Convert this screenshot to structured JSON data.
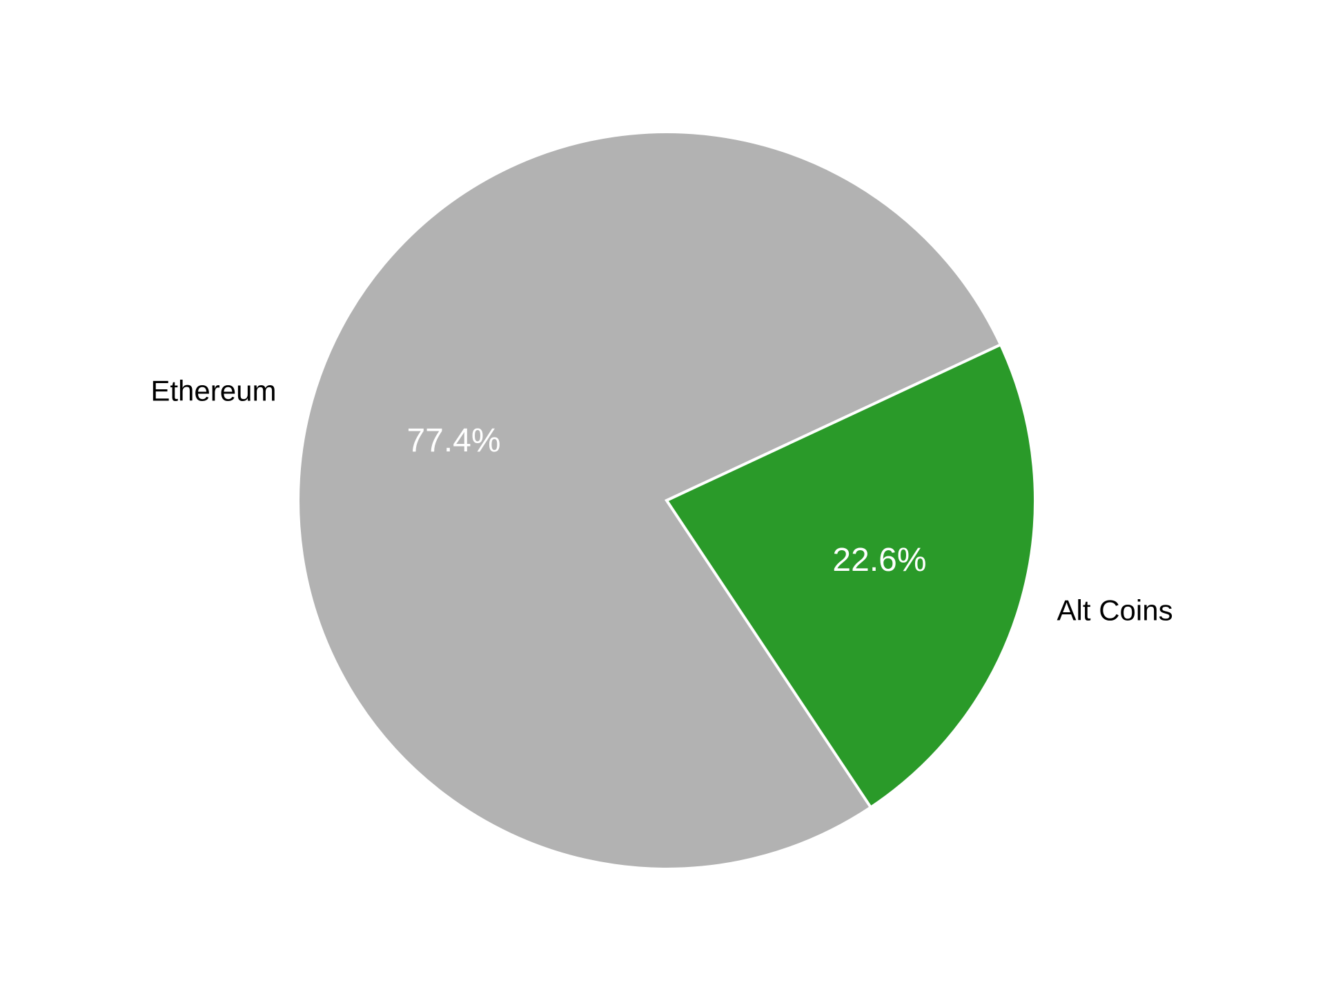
{
  "chart_data": {
    "type": "pie",
    "title": "",
    "categories": [
      "Ethereum",
      "Alt Coins"
    ],
    "values": [
      77.4,
      22.6
    ],
    "value_labels": [
      "77.4%",
      "22.6%"
    ],
    "colors": [
      "#b2b2b2",
      "#2a9a29"
    ],
    "start_angle_deg": 25,
    "direction": "counterclockwise",
    "legend": "none"
  }
}
